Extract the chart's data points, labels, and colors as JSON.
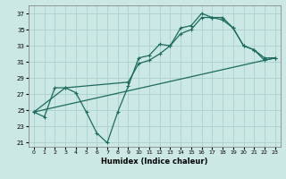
{
  "title": "",
  "xlabel": "Humidex (Indice chaleur)",
  "xlim": [
    -0.5,
    23.5
  ],
  "ylim": [
    20.5,
    38.0
  ],
  "xticks": [
    0,
    1,
    2,
    3,
    4,
    5,
    6,
    7,
    8,
    9,
    10,
    11,
    12,
    13,
    14,
    15,
    16,
    17,
    18,
    19,
    20,
    21,
    22,
    23
  ],
  "yticks": [
    21,
    23,
    25,
    27,
    29,
    31,
    33,
    35,
    37
  ],
  "bg_color": "#cce8e4",
  "line_color": "#1a6b5e",
  "grid_color": "#aacfcc",
  "line1_x": [
    0,
    1,
    2,
    3,
    4,
    5,
    6,
    7,
    8,
    9,
    10,
    11,
    12,
    13,
    14,
    15,
    16,
    17,
    18,
    19,
    20,
    21,
    22,
    23
  ],
  "line1_y": [
    24.8,
    24.2,
    27.8,
    27.8,
    27.2,
    24.8,
    22.2,
    21.0,
    24.8,
    28.0,
    31.5,
    31.8,
    33.2,
    33.0,
    35.2,
    35.5,
    37.0,
    36.5,
    36.5,
    35.2,
    33.0,
    32.5,
    31.5,
    31.5
  ],
  "line2_x": [
    0,
    3,
    9,
    10,
    11,
    12,
    13,
    14,
    15,
    16,
    17,
    18,
    19,
    20,
    21,
    22,
    23
  ],
  "line2_y": [
    24.8,
    27.8,
    28.5,
    30.8,
    31.2,
    32.0,
    33.0,
    34.5,
    35.0,
    36.5,
    36.5,
    36.2,
    35.2,
    33.0,
    32.5,
    31.2,
    31.5
  ],
  "line3_x": [
    0,
    23
  ],
  "line3_y": [
    24.8,
    31.5
  ],
  "markersize": 3.5,
  "linewidth": 0.9
}
